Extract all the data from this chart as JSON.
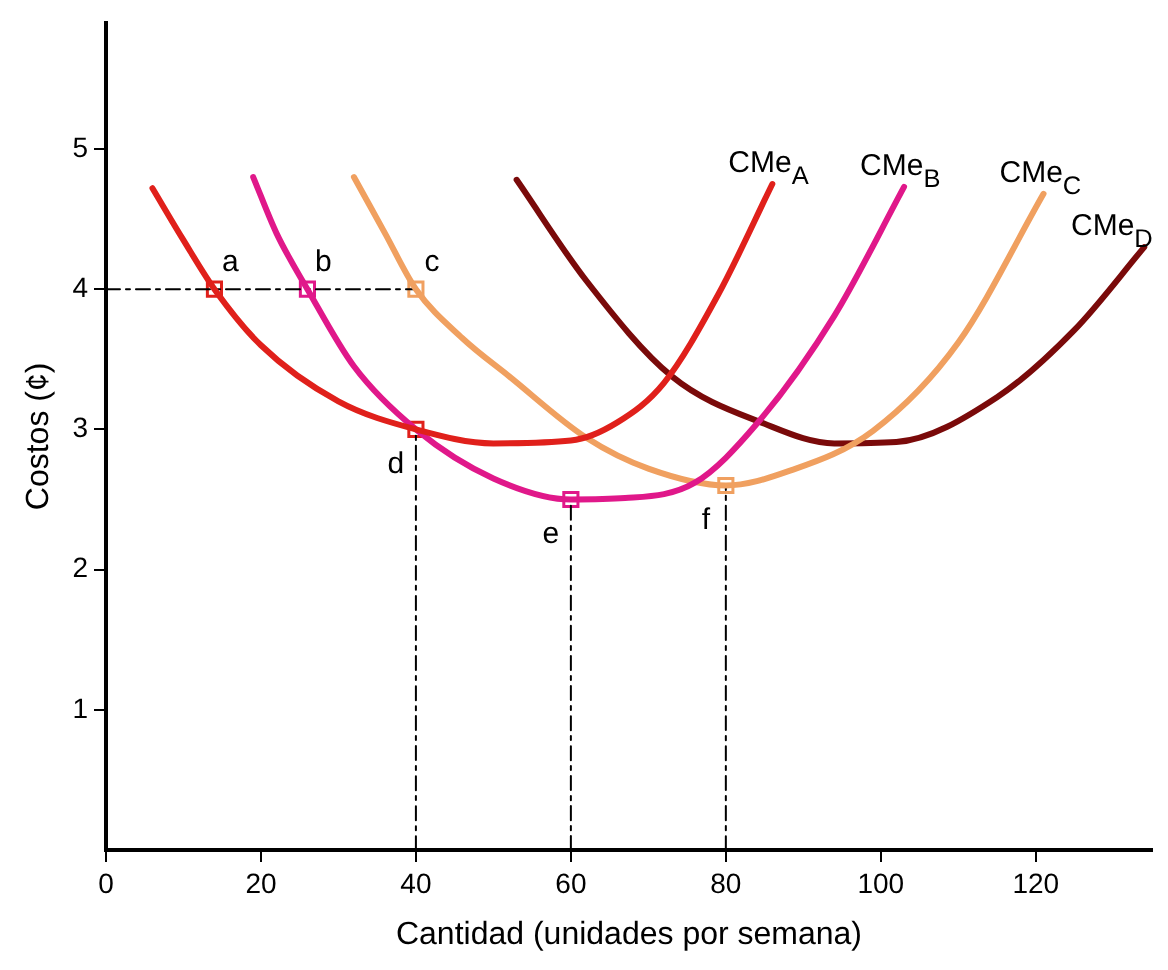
{
  "chart_data": {
    "type": "line",
    "xlabel": "Cantidad (unidades por semana)",
    "ylabel": "Costos (¢)",
    "xlim": [
      0,
      135
    ],
    "ylim": [
      0,
      5.9
    ],
    "xticks": [
      0,
      20,
      40,
      60,
      80,
      100,
      120
    ],
    "yticks": [
      1,
      2,
      3,
      4,
      5
    ],
    "legend": false,
    "marker": "none",
    "line_style": "solid",
    "series": [
      {
        "name": "CMe$_{A}$",
        "color": "#e0201b",
        "x": [
          6,
          10,
          14,
          20,
          30,
          40,
          50,
          60,
          66,
          72,
          79,
          86
        ],
        "values": [
          4.72,
          4.35,
          4,
          3.6,
          3.2,
          3.0,
          2.9,
          2.92,
          3.05,
          3.33,
          3.96,
          4.75
        ]
      },
      {
        "name": "CMe$_{B}$",
        "color": "#e0188a",
        "x": [
          19,
          22,
          26,
          32,
          40,
          50,
          60,
          67,
          76,
          84,
          94,
          103
        ],
        "values": [
          4.8,
          4.4,
          4,
          3.45,
          3.0,
          2.65,
          2.5,
          2.51,
          2.62,
          3.04,
          3.81,
          4.73
        ]
      },
      {
        "name": "CMe$_{C}$",
        "color": "#f0a060",
        "x": [
          32,
          36,
          40,
          46,
          52,
          62,
          70,
          80,
          88,
          99,
          110,
          121
        ],
        "values": [
          4.8,
          4.4,
          4,
          3.65,
          3.38,
          2.94,
          2.72,
          2.6,
          2.7,
          2.99,
          3.62,
          4.68
        ]
      },
      {
        "name": "CMe$_{D}$",
        "color": "#7a0a0a",
        "x": [
          53,
          62,
          73,
          85,
          94,
          102,
          115,
          125,
          134
        ],
        "values": [
          4.78,
          4.06,
          3.38,
          3.04,
          2.9,
          2.91,
          3.23,
          3.71,
          4.3
        ]
      },
      {
        "type": "line",
        "color": "#000000",
        "line_style": "dashed",
        "x": [
          0,
          40
        ],
        "values": [
          4,
          4
        ]
      },
      {
        "type": "line",
        "color": "#000000",
        "line_style": "dashed",
        "x": [
          40,
          40
        ],
        "values": [
          0,
          3
        ]
      },
      {
        "type": "line",
        "color": "#000000",
        "line_style": "dashed",
        "x": [
          60,
          60
        ],
        "values": [
          0,
          2.5
        ]
      },
      {
        "type": "line",
        "color": "#000000",
        "line_style": "dashed",
        "x": [
          80,
          80
        ],
        "values": [
          0,
          2.6
        ]
      },
      {
        "type": "scatter",
        "marker": "square",
        "x": [
          14,
          26,
          40,
          40,
          60,
          80
        ],
        "values": [
          4,
          4,
          4,
          3,
          2.5,
          2.6
        ],
        "colors": [
          "#e0201b",
          "#e0188a",
          "#f0a060",
          "#e0201b",
          "#e0188a",
          "#f0a060"
        ]
      }
    ],
    "annotations": [
      {
        "text": "a",
        "x": 14,
        "y": 4
      },
      {
        "text": "b",
        "x": 26,
        "y": 4
      },
      {
        "text": "c",
        "x": 40,
        "y": 4
      },
      {
        "text": "d",
        "x": 40,
        "y": 3
      },
      {
        "text": "e",
        "x": 60,
        "y": 2.5
      },
      {
        "text": "f",
        "x": 80,
        "y": 2.6
      }
    ]
  }
}
